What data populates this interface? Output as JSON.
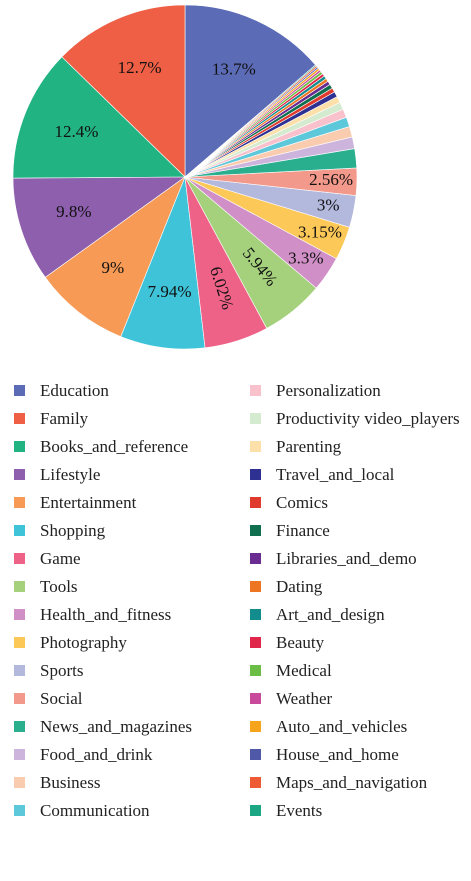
{
  "chart_data": {
    "type": "pie",
    "categories": [
      "Education",
      "Family",
      "Books_and_reference",
      "Lifestyle",
      "Entertainment",
      "Shopping",
      "Game",
      "Tools",
      "Health_and_fitness",
      "Photography",
      "Sports",
      "Social",
      "News_and_magazines",
      "Food_and_drink",
      "Business",
      "Communication",
      "Personalization",
      "Productivity video_players",
      "Parenting",
      "Travel_and_local",
      "Comics",
      "Finance",
      "Libraries_and_demo",
      "Dating",
      "Art_and_design",
      "Beauty",
      "Medical",
      "Weather",
      "Auto_and_vehicles",
      "House_and_home",
      "Maps_and_navigation",
      "Events"
    ],
    "values": [
      13.7,
      12.7,
      12.4,
      9.8,
      9,
      7.94,
      6.02,
      5.94,
      3.3,
      3.15,
      3,
      2.56,
      1.8,
      1.1,
      1.0,
      0.9,
      0.8,
      0.7,
      0.6,
      0.5,
      0.4,
      0.4,
      0.35,
      0.3,
      0.3,
      0.25,
      0.25,
      0.2,
      0.2,
      0.15,
      0.15,
      0.1
    ],
    "value_labels": [
      "13.7%",
      "12.7%",
      "12.4%",
      "9.8%",
      "9%",
      "7.94%",
      "6.02%",
      "5.94%",
      "3.3%",
      "3.15%",
      "3%",
      "2.56%",
      null,
      null,
      null,
      null,
      null,
      null,
      null,
      null,
      null,
      null,
      null,
      null,
      null,
      null,
      null,
      null,
      null,
      null,
      null,
      null
    ],
    "colors": [
      "#5b6bb5",
      "#ee5f45",
      "#22b383",
      "#8d5fad",
      "#f69a55",
      "#3ec3d8",
      "#ef6287",
      "#a5d17d",
      "#d08fc6",
      "#fcc858",
      "#b3b8dd",
      "#f3998b",
      "#2aaf8e",
      "#cdb4dc",
      "#f9ccb0",
      "#5cc8da",
      "#f8c1cc",
      "#d5ebcf",
      "#fde0a9",
      "#2e3192",
      "#e03a2f",
      "#0f6e4e",
      "#6a2c91",
      "#ee7623",
      "#138c8e",
      "#e0264a",
      "#6cbd45",
      "#c9499b",
      "#f7a41d",
      "#5058a8",
      "#ee5a33",
      "#1ba784"
    ]
  }
}
